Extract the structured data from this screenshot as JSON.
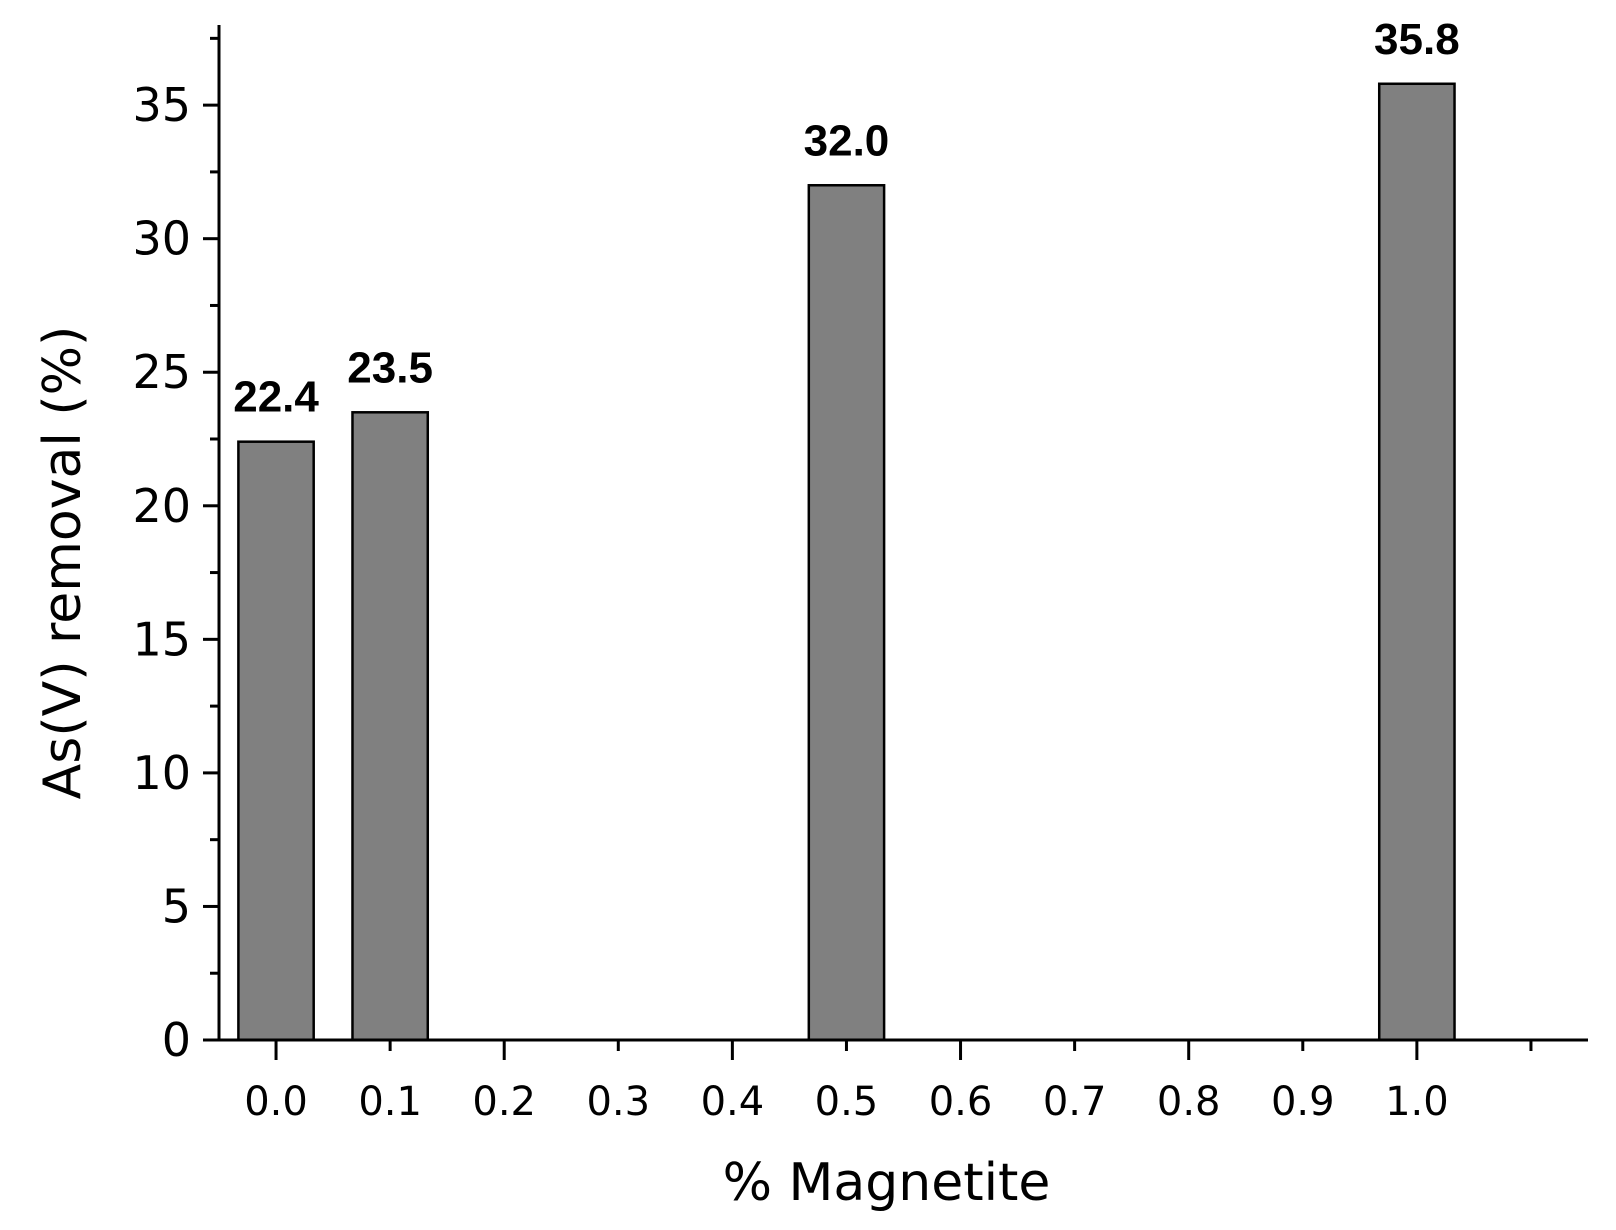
{
  "chart_data": {
    "type": "bar",
    "xlabel": "% Magnetite",
    "ylabel": "As(V) removal (%)",
    "x_ticks": [
      "0.0",
      "0.1",
      "0.2",
      "0.3",
      "0.4",
      "0.5",
      "0.6",
      "0.7",
      "0.8",
      "0.9",
      "1.0"
    ],
    "y_ticks": [
      "0",
      "5",
      "10",
      "15",
      "20",
      "25",
      "30",
      "35"
    ],
    "xlim": [
      -0.05,
      1.15
    ],
    "ylim": [
      0,
      38
    ],
    "grid": false,
    "bar_width": 0.066,
    "bar_color": "#808080",
    "bars": [
      {
        "x": 0.0,
        "value": 22.4,
        "label": "22.4"
      },
      {
        "x": 0.1,
        "value": 23.5,
        "label": "23.5"
      },
      {
        "x": 0.5,
        "value": 32.0,
        "label": "32.0"
      },
      {
        "x": 1.0,
        "value": 35.8,
        "label": "35.8"
      }
    ]
  }
}
